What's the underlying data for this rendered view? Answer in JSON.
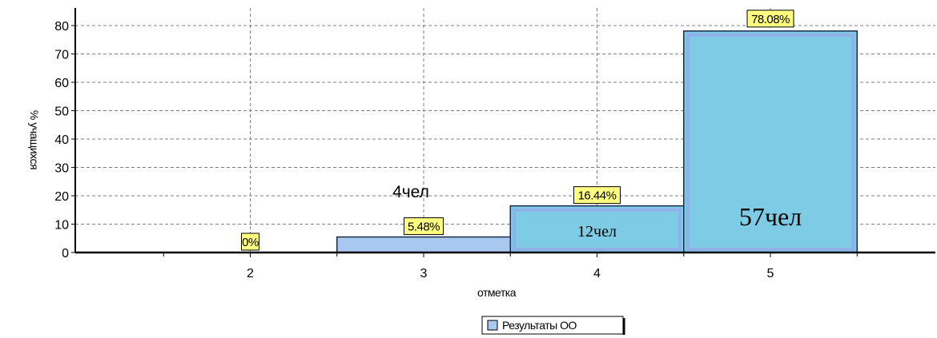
{
  "chart_data": {
    "type": "bar",
    "categories": [
      "2",
      "3",
      "4",
      "5"
    ],
    "values": [
      0,
      5.48,
      16.44,
      78.08
    ],
    "value_labels": [
      "0%",
      "5.48%",
      "16.44%",
      "78.08%"
    ],
    "count_annotations": [
      {
        "category": "3",
        "text": "4чел"
      },
      {
        "category": "4",
        "text": "12чел"
      },
      {
        "category": "5",
        "text": "57чел"
      }
    ],
    "xlabel": "отметка",
    "ylabel": "% учащихся",
    "ylim": [
      0,
      85
    ],
    "yticks": [
      0,
      10,
      20,
      30,
      40,
      50,
      60,
      70,
      80
    ],
    "grid": true,
    "legend": {
      "position": "bottom-center",
      "entries": [
        "Результаты ОО"
      ]
    },
    "colors": {
      "bar_small": "#a9c8f0",
      "bar_large": "#7ecbe6",
      "bar_large_inner_border": "#8fb0e8",
      "label_bg": "#ffff80",
      "grid": "#808080"
    }
  }
}
